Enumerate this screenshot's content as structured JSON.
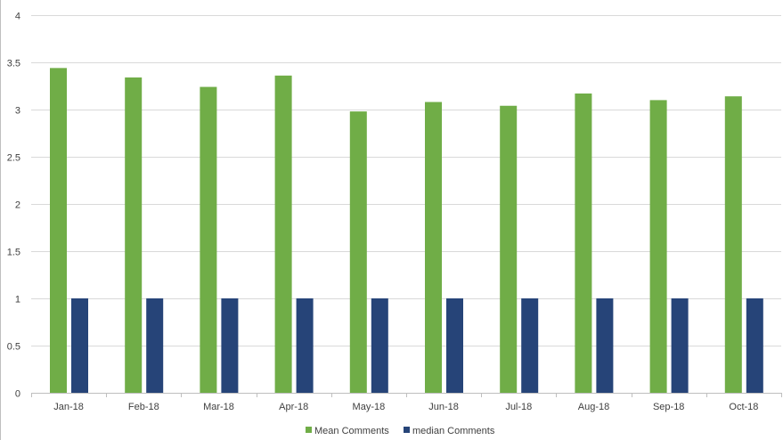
{
  "chart_data": {
    "type": "bar",
    "title": "",
    "xlabel": "",
    "ylabel": "",
    "categories": [
      "Jan-18",
      "Feb-18",
      "Mar-18",
      "Apr-18",
      "May-18",
      "Jun-18",
      "Jul-18",
      "Aug-18",
      "Sep-18",
      "Oct-18"
    ],
    "series": [
      {
        "name": "Mean Comments",
        "color": "#70ad47",
        "values": [
          3.44,
          3.34,
          3.24,
          3.36,
          2.98,
          3.08,
          3.04,
          3.17,
          3.1,
          3.14
        ]
      },
      {
        "name": "median Comments",
        "color": "#264478",
        "values": [
          1,
          1,
          1,
          1,
          1,
          1,
          1,
          1,
          1,
          1
        ]
      }
    ],
    "ylim": [
      0,
      4
    ],
    "yticks": [
      "0",
      "0.5",
      "1",
      "1.5",
      "2",
      "2.5",
      "3",
      "3.5",
      "4"
    ],
    "grid": true,
    "legend_position": "bottom"
  }
}
